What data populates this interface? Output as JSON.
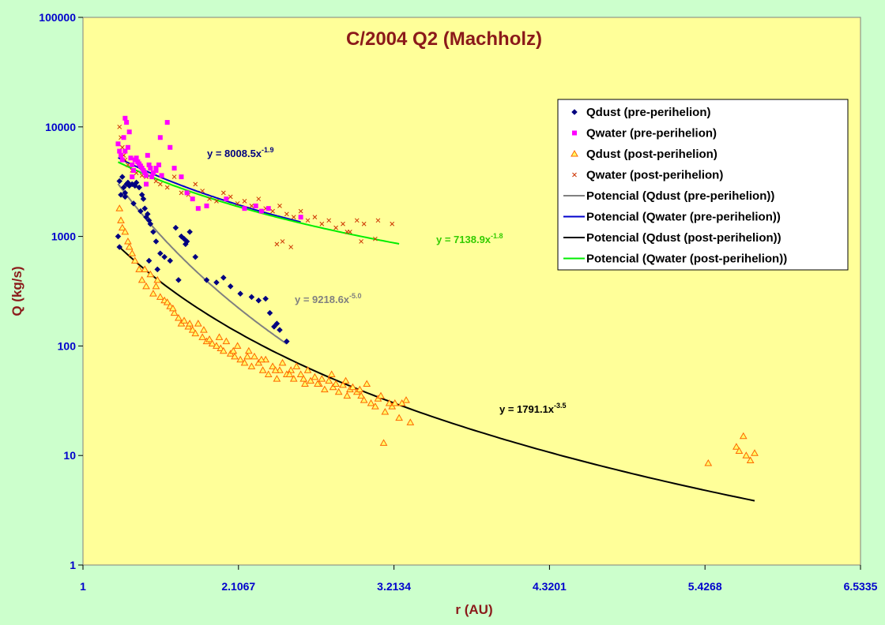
{
  "chart_data": {
    "type": "scatter",
    "title": "C/2004 Q2 (Machholz)",
    "xlabel": "r (AU)",
    "ylabel": "Q (kg/s)",
    "xlim": [
      1,
      6.5335
    ],
    "ylim": [
      1,
      100000
    ],
    "yscale": "log",
    "grid": false,
    "legend_position": "top-right",
    "x_ticks": [
      "1",
      "2.1067",
      "3.2134",
      "4.3201",
      "5.4268",
      "6.5335"
    ],
    "y_ticks": [
      "1",
      "10",
      "100",
      "1000",
      "10000",
      "100000"
    ],
    "colors": {
      "plot_bg": "#ffff99",
      "page_bg": "#ccffcc",
      "dust_pre": "#000080",
      "water_pre": "#ff00ff",
      "dust_post": "#ff6600",
      "water_post": "#cc3300",
      "fit_dust_pre": "#808080",
      "fit_water_pre": "#0000cc",
      "fit_dust_post": "#000000",
      "fit_water_post": "#00ee00"
    },
    "series": [
      {
        "name": "Qdust (pre-perihelion)",
        "marker": "diamond",
        "color": "#000080",
        "x": [
          1.25,
          1.26,
          1.27,
          1.28,
          1.29,
          1.3,
          1.31,
          1.32,
          1.33,
          1.35,
          1.37,
          1.38,
          1.4,
          1.42,
          1.43,
          1.44,
          1.45,
          1.46,
          1.47,
          1.48,
          1.5,
          1.52,
          1.55,
          1.58,
          1.62,
          1.66,
          1.7,
          1.72,
          1.74,
          1.76,
          1.8,
          1.88,
          1.95,
          2.0,
          2.05,
          2.12,
          2.2,
          2.25,
          2.3,
          2.33,
          2.36,
          2.38,
          2.4,
          2.45,
          1.26,
          1.3,
          1.36,
          1.41,
          1.47,
          1.53,
          1.68,
          1.73
        ],
        "y": [
          1000,
          800,
          2400,
          3500,
          2800,
          2300,
          3000,
          3100,
          2900,
          3000,
          2900,
          3100,
          2800,
          2400,
          2200,
          1800,
          1500,
          1600,
          1400,
          1300,
          1100,
          900,
          700,
          650,
          600,
          1200,
          1000,
          950,
          900,
          1100,
          650,
          400,
          380,
          420,
          350,
          300,
          280,
          260,
          270,
          200,
          150,
          160,
          140,
          110,
          3200,
          2500,
          2000,
          1700,
          600,
          500,
          400,
          850
        ]
      },
      {
        "name": "Qwater (pre-perihelion)",
        "marker": "square",
        "color": "#ff00ff",
        "x": [
          1.25,
          1.26,
          1.27,
          1.28,
          1.29,
          1.3,
          1.31,
          1.32,
          1.33,
          1.34,
          1.35,
          1.36,
          1.37,
          1.38,
          1.39,
          1.4,
          1.41,
          1.42,
          1.43,
          1.44,
          1.45,
          1.46,
          1.47,
          1.48,
          1.49,
          1.5,
          1.52,
          1.54,
          1.55,
          1.56,
          1.6,
          1.62,
          1.65,
          1.7,
          1.74,
          1.78,
          1.82,
          1.88,
          2.02,
          2.15,
          2.23,
          2.27,
          2.32,
          2.55,
          1.3,
          1.35,
          1.45,
          1.52
        ],
        "y": [
          7000,
          6000,
          5500,
          5000,
          8000,
          12000,
          11000,
          6500,
          9000,
          5200,
          4500,
          4000,
          5000,
          5200,
          4800,
          4600,
          4400,
          4200,
          4000,
          3800,
          3600,
          5500,
          4500,
          4200,
          3500,
          3800,
          4000,
          4500,
          8000,
          3600,
          11000,
          6500,
          4200,
          3500,
          2500,
          2200,
          1800,
          1900,
          2200,
          1800,
          1900,
          1700,
          1800,
          1500,
          6000,
          3500,
          3000,
          4200
        ]
      },
      {
        "name": "Qdust (post-perihelion)",
        "marker": "triangle",
        "color": "#ff6600",
        "x": [
          1.26,
          1.27,
          1.28,
          1.3,
          1.32,
          1.33,
          1.35,
          1.37,
          1.4,
          1.42,
          1.45,
          1.48,
          1.5,
          1.53,
          1.55,
          1.58,
          1.6,
          1.62,
          1.65,
          1.68,
          1.7,
          1.72,
          1.75,
          1.78,
          1.8,
          1.82,
          1.85,
          1.88,
          1.9,
          1.92,
          1.95,
          1.98,
          2.0,
          2.02,
          2.05,
          2.08,
          2.1,
          2.12,
          2.15,
          2.18,
          2.2,
          2.22,
          2.25,
          2.28,
          2.3,
          2.32,
          2.35,
          2.38,
          2.4,
          2.42,
          2.45,
          2.48,
          2.5,
          2.52,
          2.55,
          2.58,
          2.6,
          2.62,
          2.65,
          2.68,
          2.7,
          2.72,
          2.75,
          2.78,
          2.8,
          2.82,
          2.85,
          2.88,
          2.9,
          2.92,
          2.95,
          2.98,
          3.0,
          3.02,
          3.05,
          3.08,
          3.1,
          3.12,
          3.15,
          3.18,
          3.2,
          3.22,
          3.25,
          3.3,
          3.33,
          1.44,
          1.52,
          1.64,
          1.76,
          1.86,
          1.97,
          2.07,
          2.17,
          2.27,
          2.37,
          2.47,
          2.57,
          2.67,
          2.77,
          2.87,
          2.97,
          3.14,
          3.27,
          5.45,
          5.65,
          5.67,
          5.7,
          5.72,
          5.75,
          5.78
        ],
        "y": [
          1800,
          1400,
          1200,
          1100,
          900,
          800,
          700,
          600,
          500,
          400,
          350,
          450,
          300,
          400,
          280,
          260,
          250,
          230,
          200,
          180,
          160,
          170,
          150,
          140,
          130,
          160,
          120,
          110,
          115,
          105,
          100,
          95,
          90,
          110,
          85,
          80,
          100,
          75,
          70,
          90,
          65,
          80,
          70,
          60,
          75,
          55,
          65,
          50,
          60,
          70,
          55,
          60,
          50,
          65,
          55,
          45,
          60,
          48,
          52,
          45,
          50,
          40,
          48,
          42,
          45,
          38,
          44,
          35,
          40,
          42,
          38,
          35,
          32,
          45,
          30,
          28,
          33,
          35,
          25,
          30,
          28,
          30,
          22,
          32,
          20,
          500,
          350,
          220,
          160,
          140,
          120,
          90,
          80,
          75,
          60,
          55,
          50,
          45,
          55,
          48,
          40,
          13,
          30,
          8.5,
          12,
          11,
          15,
          10,
          9,
          10.5
        ]
      },
      {
        "name": "Qwater (post-perihelion)",
        "marker": "x",
        "color": "#cc3300",
        "x": [
          1.26,
          1.27,
          1.28,
          1.29,
          1.3,
          1.32,
          1.35,
          1.38,
          1.42,
          1.45,
          1.48,
          1.52,
          1.55,
          1.6,
          1.65,
          1.7,
          1.75,
          1.8,
          1.85,
          1.9,
          1.95,
          2.0,
          2.05,
          2.1,
          2.15,
          2.2,
          2.25,
          2.3,
          2.35,
          2.4,
          2.45,
          2.5,
          2.55,
          2.6,
          2.65,
          2.7,
          2.75,
          2.8,
          2.85,
          2.9,
          2.95,
          3.0,
          3.1,
          3.2,
          2.38,
          2.42,
          2.48,
          2.88,
          2.98,
          3.08
        ],
        "y": [
          10000,
          8000,
          6500,
          5500,
          5000,
          4500,
          4000,
          3800,
          3600,
          3500,
          4200,
          3200,
          3000,
          2800,
          3500,
          2500,
          2400,
          3000,
          2600,
          2200,
          2100,
          2500,
          2300,
          2000,
          2100,
          1900,
          2200,
          1800,
          1700,
          1900,
          1600,
          1500,
          1700,
          1400,
          1500,
          1300,
          1400,
          1200,
          1300,
          1100,
          1400,
          1300,
          1400,
          1300,
          850,
          900,
          800,
          1100,
          900,
          950
        ]
      }
    ],
    "fits": [
      {
        "name": "Potencial (Qdust (pre-perihelion))",
        "color": "#808080",
        "a": 9218.6,
        "b": -5.0,
        "x_range": [
          1.25,
          2.45
        ],
        "equation_label": "y = 9218.6x",
        "exponent_label": "-5.0"
      },
      {
        "name": "Potencial (Qwater (pre-perihelion))",
        "color": "#0000cc",
        "a": 8008.5,
        "b": -1.9,
        "x_range": [
          1.25,
          2.55
        ],
        "equation_label": "y = 8008.5x",
        "exponent_label": "-1.9"
      },
      {
        "name": "Potencial (Qdust (post-perihelion))",
        "color": "#000000",
        "a": 1791.1,
        "b": -3.5,
        "x_range": [
          1.25,
          5.78
        ],
        "equation_label": "y = 1791.1x",
        "exponent_label": "-3.5"
      },
      {
        "name": "Potencial (Qwater (post-perihelion))",
        "color": "#00ee00",
        "a": 7138.9,
        "b": -1.8,
        "x_range": [
          1.25,
          3.25
        ],
        "equation_label": "y = 7138.9x",
        "exponent_label": "-1.8"
      }
    ]
  }
}
